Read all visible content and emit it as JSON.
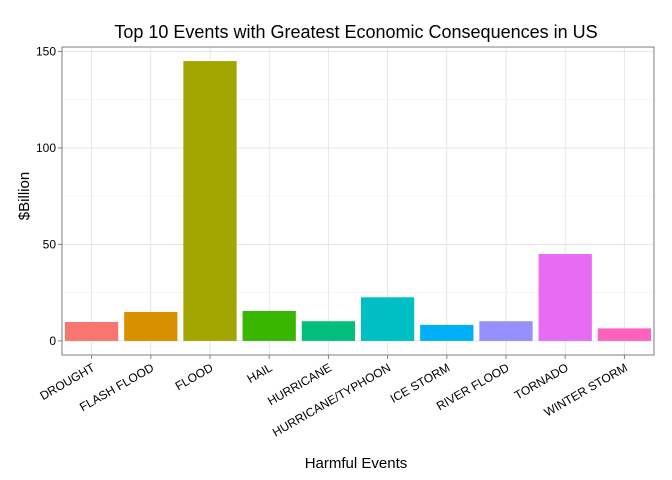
{
  "chart_data": {
    "type": "bar",
    "title": "Top 10 Events with Greatest Economic Consequences in US",
    "xlabel": "Harmful Events",
    "ylabel": "$Billion",
    "categories": [
      "DROUGHT",
      "FLASH FLOOD",
      "FLOOD",
      "HAIL",
      "HURRICANE",
      "HURRICANE/TYPHOON",
      "ICE STORM",
      "RIVER FLOOD",
      "TORNADO",
      "WINTER STORM"
    ],
    "values": [
      9.8,
      15.0,
      145.0,
      15.5,
      10.2,
      22.6,
      8.3,
      10.2,
      45.0,
      6.5
    ],
    "colors": [
      "#F8766D",
      "#D89000",
      "#A3A500",
      "#39B600",
      "#00BF7D",
      "#00BFC4",
      "#00B0F6",
      "#9590FF",
      "#E76BF3",
      "#FF62BC"
    ],
    "yticks": [
      0,
      50,
      100,
      150
    ],
    "ytick_labels": [
      "0",
      "50",
      "100",
      "150"
    ],
    "ylim": [
      -7.3,
      152.3
    ],
    "grid": true,
    "legend": "none"
  }
}
